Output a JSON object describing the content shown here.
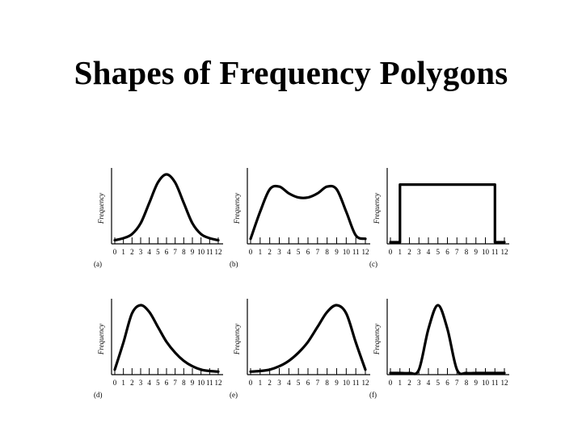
{
  "slide": {
    "title": "Shapes of Frequency Polygons"
  },
  "chart_data": [
    {
      "type": "line",
      "panel_label": "(a)",
      "ylabel": "Frequency",
      "x": [
        0,
        1,
        2,
        3,
        4,
        5,
        6,
        7,
        8,
        9,
        10,
        11,
        12
      ],
      "tick_labels": [
        "0",
        "1",
        "2",
        "3",
        "4",
        "5",
        "6",
        "7",
        "8",
        "9",
        "10",
        "11",
        "12"
      ],
      "values": [
        0.03,
        0.06,
        0.12,
        0.28,
        0.58,
        0.88,
        1.0,
        0.88,
        0.58,
        0.28,
        0.12,
        0.06,
        0.03
      ],
      "ylim": [
        0,
        1.15
      ]
    },
    {
      "type": "line",
      "panel_label": "(b)",
      "ylabel": "Frequency",
      "x": [
        0,
        1,
        2,
        3,
        4,
        5,
        6,
        7,
        8,
        9,
        10,
        11,
        12
      ],
      "tick_labels": [
        "0",
        "1",
        "2",
        "3",
        "4",
        "5",
        "6",
        "7",
        "8",
        "9",
        "10",
        "11",
        "12"
      ],
      "values": [
        0.05,
        0.45,
        0.78,
        0.82,
        0.72,
        0.66,
        0.66,
        0.72,
        0.82,
        0.78,
        0.45,
        0.1,
        0.05
      ],
      "ylim": [
        0,
        1.15
      ]
    },
    {
      "type": "line",
      "panel_label": "(c)",
      "ylabel": "Frequency",
      "x": [
        0,
        1,
        1,
        2,
        3,
        4,
        5,
        6,
        7,
        8,
        9,
        10,
        11,
        11,
        12
      ],
      "tick_labels": [
        "0",
        "1",
        "2",
        "3",
        "4",
        "5",
        "6",
        "7",
        "8",
        "9",
        "10",
        "11",
        "12"
      ],
      "values": [
        0,
        0,
        0.85,
        0.85,
        0.85,
        0.85,
        0.85,
        0.85,
        0.85,
        0.85,
        0.85,
        0.85,
        0.85,
        0,
        0
      ],
      "ylim": [
        0,
        1.15
      ]
    },
    {
      "type": "line",
      "panel_label": "(d)",
      "ylabel": "Frequency",
      "x": [
        0,
        1,
        2,
        3,
        4,
        5,
        6,
        7,
        8,
        9,
        10,
        11,
        12
      ],
      "tick_labels": [
        "0",
        "1",
        "2",
        "3",
        "4",
        "5",
        "6",
        "7",
        "8",
        "9",
        "10",
        "11",
        "12"
      ],
      "values": [
        0.05,
        0.45,
        0.88,
        1.0,
        0.9,
        0.68,
        0.46,
        0.3,
        0.18,
        0.1,
        0.05,
        0.03,
        0.02
      ],
      "ylim": [
        0,
        1.15
      ]
    },
    {
      "type": "line",
      "panel_label": "(e)",
      "ylabel": "Frequency",
      "x": [
        0,
        1,
        2,
        3,
        4,
        5,
        6,
        7,
        8,
        9,
        10,
        11,
        12
      ],
      "tick_labels": [
        "0",
        "1",
        "2",
        "3",
        "4",
        "5",
        "6",
        "7",
        "8",
        "9",
        "10",
        "11",
        "12"
      ],
      "values": [
        0.02,
        0.03,
        0.05,
        0.1,
        0.18,
        0.3,
        0.46,
        0.68,
        0.9,
        1.0,
        0.88,
        0.45,
        0.05
      ],
      "ylim": [
        0,
        1.15
      ]
    },
    {
      "type": "line",
      "panel_label": "(f)",
      "ylabel": "Frequency",
      "x": [
        0,
        1,
        2,
        3,
        4,
        5,
        6,
        7,
        8,
        9,
        10,
        11,
        12
      ],
      "tick_labels": [
        "0",
        "1",
        "2",
        "3",
        "4",
        "5",
        "6",
        "7",
        "8",
        "9",
        "10",
        "11",
        "12"
      ],
      "values": [
        0,
        0,
        0,
        0.05,
        0.65,
        1.0,
        0.65,
        0.05,
        0,
        0,
        0,
        0,
        0
      ],
      "ylim": [
        0,
        1.15
      ]
    }
  ]
}
